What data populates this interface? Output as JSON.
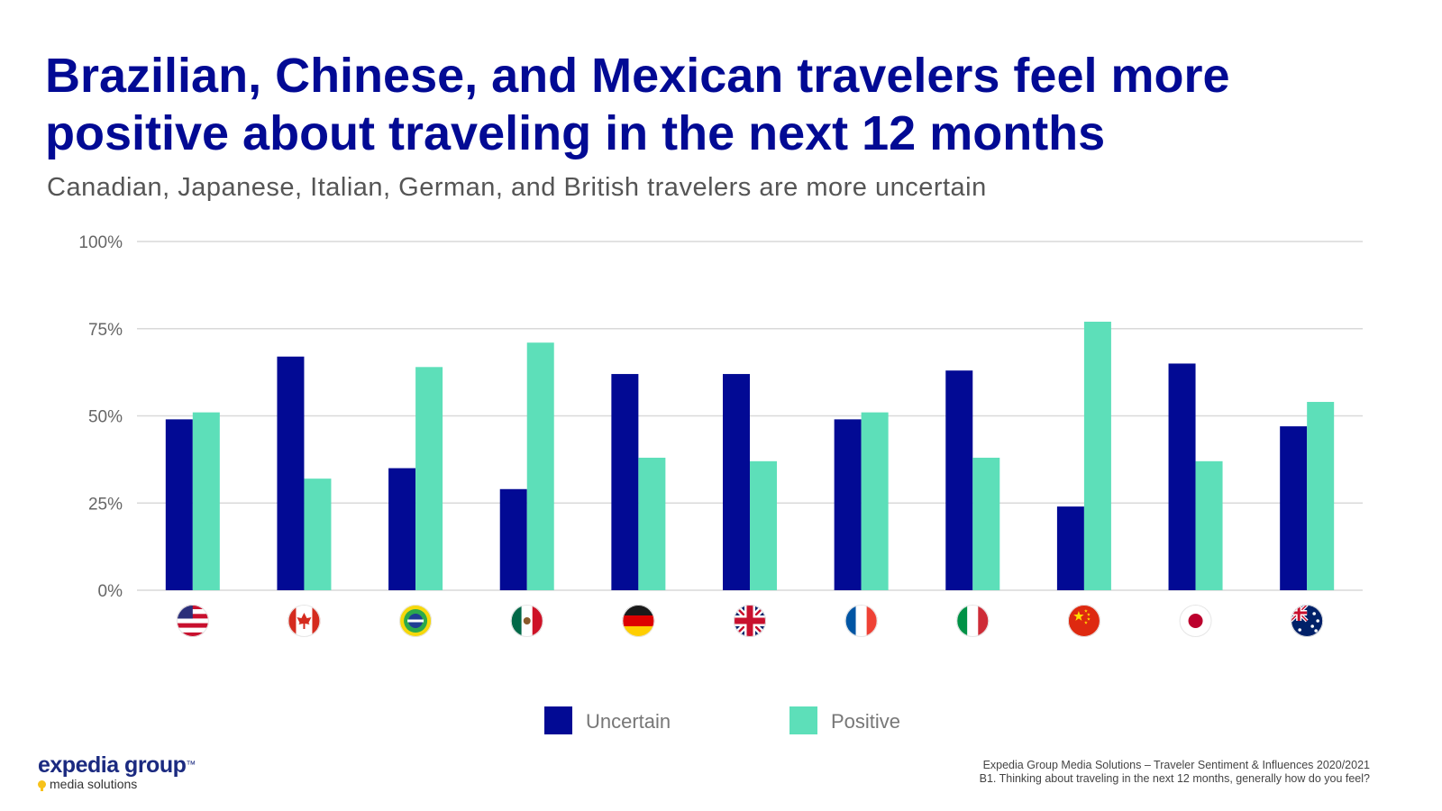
{
  "header": {
    "title_line1": "Brazilian, Chinese, and Mexican travelers feel more",
    "title_line2": "positive about traveling in the next 12 months",
    "subtitle": "Canadian, Japanese, Italian, German, and British travelers are more uncertain"
  },
  "colors": {
    "uncertain": "#020a94",
    "positive": "#5ddfb9",
    "title": "#020a94",
    "grid": "#d9d9d9"
  },
  "chart_data": {
    "type": "bar",
    "categories": [
      "United States",
      "Canada",
      "Brazil",
      "Mexico",
      "Germany",
      "United Kingdom",
      "France",
      "Italy",
      "China",
      "Japan",
      "Australia"
    ],
    "category_icons": [
      "us-flag-icon",
      "canada-flag-icon",
      "brazil-flag-icon",
      "mexico-flag-icon",
      "germany-flag-icon",
      "uk-flag-icon",
      "france-flag-icon",
      "italy-flag-icon",
      "china-flag-icon",
      "japan-flag-icon",
      "australia-flag-icon"
    ],
    "series": [
      {
        "name": "Uncertain",
        "values": [
          49,
          67,
          35,
          29,
          62,
          62,
          49,
          63,
          24,
          65,
          47
        ]
      },
      {
        "name": "Positive",
        "values": [
          51,
          32,
          64,
          71,
          38,
          37,
          51,
          38,
          77,
          37,
          54
        ]
      }
    ],
    "ylim": [
      0,
      100
    ],
    "yticks": [
      0,
      25,
      50,
      75,
      100
    ],
    "ytick_labels": [
      "0%",
      "25%",
      "50%",
      "75%",
      "100%"
    ],
    "grid": true,
    "legend_position": "bottom"
  },
  "footer": {
    "source_line1": "Expedia Group Media Solutions – Traveler Sentiment & Influences 2020/2021",
    "source_line2": "B1. Thinking about traveling in the next 12 months, generally how do you feel?",
    "logo_main": "expedia group",
    "logo_tm": "™",
    "logo_sub": "media solutions"
  }
}
